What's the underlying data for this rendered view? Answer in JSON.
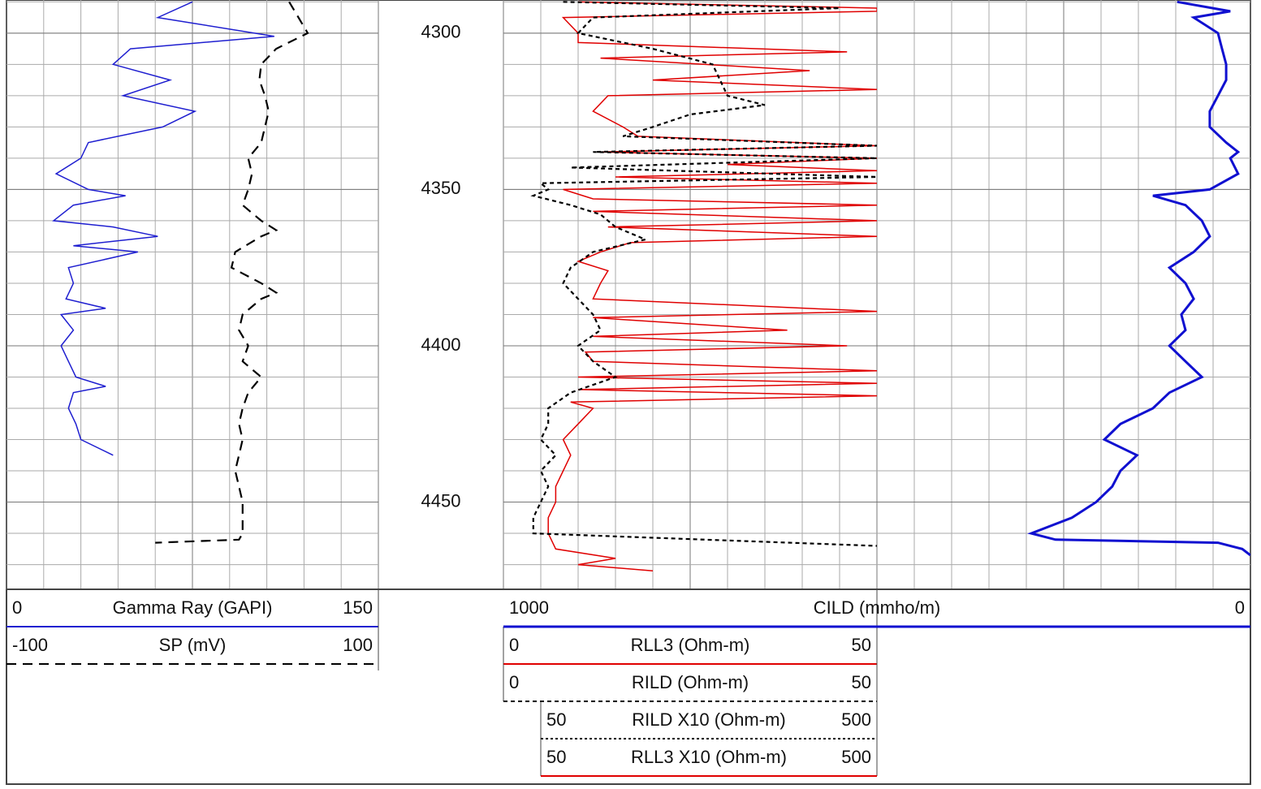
{
  "chart_data": {
    "type": "well_log",
    "ylim": [
      4289.4,
      4477.9
    ],
    "yticks": [
      4300,
      4350,
      4400,
      4450
    ],
    "ygrid": [
      4290,
      4300,
      4310,
      4320,
      4330,
      4340,
      4350,
      4360,
      4370,
      4380,
      4390,
      4400,
      4410,
      4420,
      4430,
      4440,
      4450,
      4460,
      4470
    ],
    "tracks": [
      {
        "curves": [
          {
            "name": "Gamma Ray (GAPI)",
            "range": [
              0,
              150
            ],
            "color": "#1f1fd0",
            "x": [
              4290,
              4295,
              4301,
              4305,
              4310,
              4315,
              4320,
              4325,
              4330,
              4335,
              4340,
              4345,
              4350,
              4352,
              4355,
              4360,
              4362,
              4365,
              4368,
              4370,
              4375,
              4380,
              4385,
              4388,
              4390,
              4395,
              4400,
              4405,
              4410,
              4413,
              4415,
              4420,
              4425,
              4430,
              4435
            ],
            "values": [
              75,
              61,
              108,
              50,
              43,
              66,
              47,
              76,
              63,
              33,
              30,
              20,
              33,
              48,
              27,
              19,
              43,
              61,
              27,
              53,
              25,
              27,
              24,
              40,
              22,
              27,
              22,
              25,
              28,
              40,
              27,
              25,
              28,
              30,
              43
            ]
          },
          {
            "name": "SP (mV)",
            "range": [
              -100,
              100
            ],
            "color": "#000000",
            "dash": "12 8",
            "x": [
              4290,
              4300,
              4305,
              4310,
              4315,
              4320,
              4325,
              4330,
              4335,
              4340,
              4345,
              4350,
              4355,
              4360,
              4363,
              4365,
              4370,
              4375,
              4380,
              4383,
              4385,
              4390,
              4395,
              4400,
              4405,
              4410,
              4415,
              4420,
              4425,
              4430,
              4435,
              4440,
              4445,
              4450,
              4455,
              4460,
              4462,
              4463
            ],
            "values": [
              52,
              62,
              45,
              37,
              36,
              39,
              41,
              39,
              37,
              30,
              32,
              30,
              27,
              37,
              45,
              37,
              23,
              21,
              37,
              45,
              37,
              27,
              25,
              30,
              27,
              37,
              30,
              27,
              25,
              27,
              25,
              23,
              25,
              27,
              27,
              27,
              25,
              -20
            ]
          }
        ]
      },
      {
        "curves": [
          {
            "name": "RLL3 (Ohm-m)",
            "range": [
              0,
              50
            ],
            "color": "#e00000",
            "x": [
              4290,
              4292,
              4293,
              4295,
              4300,
              4303,
              4306,
              4308,
              4312,
              4315,
              4318,
              4320,
              4325,
              4330,
              4333,
              4336,
              4338,
              4340,
              4342,
              4344,
              4346,
              4348,
              4350,
              4353,
              4355,
              4357,
              4360,
              4362,
              4365,
              4367,
              4370,
              4373,
              4376,
              4380,
              4385,
              4389,
              4391,
              4395,
              4397,
              4400,
              4402,
              4405,
              4408,
              4410,
              4412,
              4414,
              4416,
              4418,
              4420,
              4425,
              4430,
              4435,
              4440,
              4445,
              4450,
              4455,
              4460,
              4465,
              4468,
              4470,
              4472
            ],
            "values": [
              10,
              50,
              50,
              8,
              10,
              10,
              46,
              13,
              41,
              20,
              50,
              14,
              12,
              16,
              18,
              50,
              13,
              50,
              30,
              50,
              15,
              50,
              8,
              12,
              50,
              12,
              50,
              14,
              50,
              17,
              13,
              10,
              14,
              13,
              12,
              50,
              12,
              38,
              12,
              46,
              11,
              12,
              50,
              10,
              50,
              10,
              50,
              9,
              12,
              10,
              8,
              9,
              8,
              7,
              7,
              6,
              6,
              7,
              15,
              10,
              20
            ]
          },
          {
            "name": "RILD (Ohm-m)",
            "range": [
              0,
              50
            ],
            "color": "#000000",
            "dash": "5 4",
            "x": [
              4290,
              4292,
              4295,
              4300,
              4305,
              4310,
              4315,
              4320,
              4323,
              4326,
              4330,
              4333,
              4336,
              4338,
              4340,
              4343,
              4346,
              4348,
              4350,
              4352,
              4355,
              4358,
              4362,
              4366,
              4370,
              4375,
              4380,
              4385,
              4390,
              4395,
              4400,
              4405,
              4410,
              4415,
              4420,
              4425,
              4430,
              4435,
              4440,
              4445,
              4450,
              4455,
              4460,
              4464
            ],
            "values": [
              8,
              45,
              12,
              10,
              20,
              28,
              29,
              30,
              35,
              25,
              20,
              16,
              50,
              12,
              50,
              9,
              50,
              5,
              6,
              4,
              9,
              13,
              15,
              19,
              12,
              9,
              8,
              10,
              12,
              13,
              10,
              12,
              15,
              9,
              6,
              6,
              5,
              7,
              5,
              6,
              5,
              4,
              4,
              50
            ]
          },
          {
            "name": "RILD X10 (Ohm-m)",
            "range": [
              50,
              500
            ],
            "color": "#000000",
            "dash": "3 3"
          },
          {
            "name": "RLL3 X10 (Ohm-m)",
            "range": [
              50,
              500
            ],
            "color": "#e00000"
          }
        ]
      },
      {
        "curves": [
          {
            "name": "CILD (mmho/m)",
            "range": [
              1000,
              0
            ],
            "color": "#1010d0",
            "width": 3,
            "x": [
              4290,
              4293,
              4295,
              4300,
              4305,
              4310,
              4315,
              4320,
              4325,
              4330,
              4335,
              4338,
              4340,
              4345,
              4350,
              4352,
              4355,
              4360,
              4365,
              4370,
              4375,
              4380,
              4385,
              4390,
              4395,
              4400,
              4405,
              4410,
              4415,
              4420,
              4425,
              4430,
              4435,
              4440,
              4445,
              4450,
              4455,
              4460,
              4462,
              4463,
              4465,
              4467
            ],
            "values": [
              196,
              54,
              152,
              87,
              76,
              65,
              65,
              87,
              109,
              109,
              65,
              33,
              54,
              33,
              109,
              261,
              174,
              130,
              109,
              152,
              217,
              174,
              152,
              185,
              174,
              217,
              174,
              130,
              217,
              261,
              348,
              391,
              304,
              348,
              370,
              413,
              478,
              587,
              522,
              87,
              22,
              0
            ]
          }
        ]
      }
    ]
  }
}
